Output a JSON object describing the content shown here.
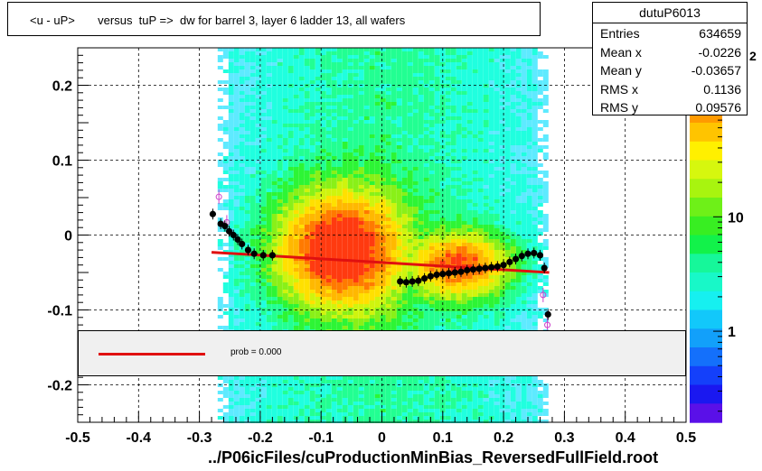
{
  "title": "<u - uP>       versus  tuP =>  dw for barrel 3, layer 6 ladder 13, all wafers",
  "stats": {
    "name": "dutuP6013",
    "rows": [
      {
        "label": "Entries",
        "value": "634659"
      },
      {
        "label": "Mean x",
        "value": "-0.0226"
      },
      {
        "label": "Mean y",
        "value": "-0.03657"
      },
      {
        "label": "RMS x",
        "value": "0.1136"
      },
      {
        "label": "RMS y",
        "value": "0.09576"
      }
    ]
  },
  "fit_legend": {
    "text": "prob = 0.000",
    "line_color": "#e01010"
  },
  "x_axis_title": "../P06icFiles/cuProductionMinBias_ReversedFullField.root",
  "colors": {
    "fit_line": "#e01010",
    "profile_points": "#000000",
    "open_markers": "#cc44cc"
  },
  "chart_data": {
    "type": "heatmap",
    "xlim": [
      -0.5,
      0.5
    ],
    "ylim": [
      -0.25,
      0.25
    ],
    "x_ticks": [
      "-0.5",
      "-0.4",
      "-0.3",
      "-0.2",
      "-0.1",
      "0",
      "0.1",
      "0.2",
      "0.3",
      "0.4",
      "0.5"
    ],
    "y_ticks": [
      "-0.2",
      "-0.1",
      "0",
      "0.1",
      "0.2"
    ],
    "z_scale": "log",
    "z_ticks": [
      "1",
      "10"
    ],
    "z_partial_label": "2",
    "grid": true,
    "density_x_range": [
      -0.27,
      0.27
    ],
    "profile_points": {
      "x": [
        -0.278,
        -0.265,
        -0.258,
        -0.251,
        -0.244,
        -0.237,
        -0.23,
        -0.22,
        -0.21,
        -0.195,
        -0.18,
        0.03,
        0.04,
        0.05,
        0.06,
        0.07,
        0.08,
        0.09,
        0.1,
        0.11,
        0.12,
        0.13,
        0.14,
        0.15,
        0.16,
        0.17,
        0.18,
        0.19,
        0.2,
        0.21,
        0.22,
        0.23,
        0.24,
        0.25,
        0.26,
        0.267,
        0.273
      ],
      "y": [
        0.028,
        0.015,
        0.012,
        0.005,
        0.0,
        -0.006,
        -0.012,
        -0.02,
        -0.025,
        -0.027,
        -0.027,
        -0.062,
        -0.063,
        -0.062,
        -0.061,
        -0.058,
        -0.055,
        -0.053,
        -0.052,
        -0.051,
        -0.05,
        -0.049,
        -0.047,
        -0.046,
        -0.045,
        -0.044,
        -0.043,
        -0.042,
        -0.04,
        -0.036,
        -0.032,
        -0.028,
        -0.025,
        -0.024,
        -0.027,
        -0.044,
        -0.106
      ]
    },
    "open_markers": {
      "x": [
        -0.268,
        -0.255,
        0.265,
        0.272
      ],
      "y": [
        0.051,
        0.017,
        -0.08,
        -0.12
      ]
    },
    "fit_line": {
      "x": [
        -0.28,
        0.275
      ],
      "y": [
        -0.023,
        -0.05
      ]
    },
    "fit_prob": "prob = 0.000"
  }
}
